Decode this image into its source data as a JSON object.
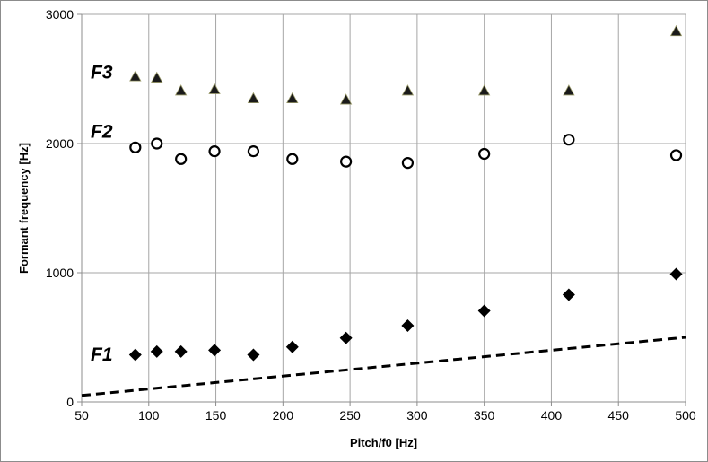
{
  "chart_data": {
    "type": "scatter",
    "title": "",
    "xlabel": "Pitch/f0 [Hz]",
    "ylabel": "Formant frequency [Hz]",
    "xlim": [
      50,
      500
    ],
    "ylim": [
      0,
      3000
    ],
    "x_ticks": [
      50,
      100,
      150,
      200,
      250,
      300,
      350,
      400,
      450,
      500
    ],
    "y_ticks": [
      0,
      1000,
      2000,
      3000
    ],
    "grid": true,
    "x": [
      90,
      106,
      124,
      149,
      178,
      207,
      247,
      293,
      350,
      413,
      493
    ],
    "series": [
      {
        "name": "F3",
        "marker": "triangle",
        "color": "#000000",
        "fill": "#1a1a1a",
        "values": [
          2520,
          2510,
          2410,
          2420,
          2350,
          2350,
          2340,
          2410,
          2410,
          2410,
          2870
        ]
      },
      {
        "name": "F2",
        "marker": "circle-open",
        "color": "#000000",
        "values": [
          1970,
          2000,
          1880,
          1940,
          1940,
          1880,
          1860,
          1850,
          1920,
          2030,
          1910
        ]
      },
      {
        "name": "F1",
        "marker": "diamond",
        "color": "#000000",
        "values": [
          365,
          390,
          390,
          400,
          365,
          425,
          495,
          590,
          705,
          830,
          990
        ]
      }
    ],
    "reference_line": {
      "style": "dashed",
      "color": "#000000",
      "points": [
        [
          50,
          50
        ],
        [
          500,
          500
        ]
      ]
    },
    "label_positions": {
      "F3": [
        2505
      ],
      "F2": [
        2045
      ],
      "F1": [
        320
      ]
    }
  }
}
